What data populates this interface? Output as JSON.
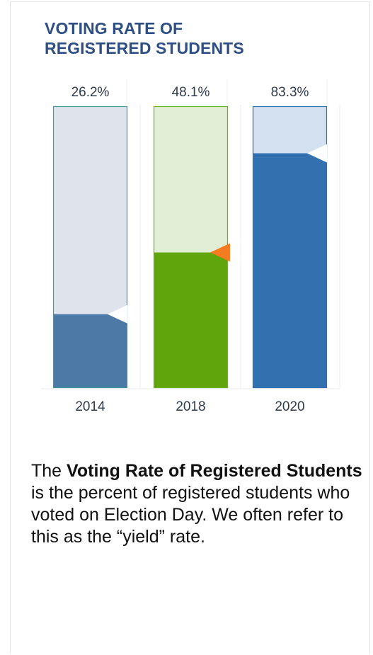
{
  "title_lines": [
    "VOTING RATE OF",
    "REGISTERED STUDENTS"
  ],
  "chart_data": {
    "type": "bar",
    "categories": [
      "2014",
      "2018",
      "2020"
    ],
    "values": [
      26.2,
      48.1,
      83.3
    ],
    "value_labels": [
      "26.2%",
      "48.1%",
      "83.3%"
    ],
    "ylim": [
      0,
      100
    ],
    "colors": {
      "2014": {
        "fill": "#4d79a6",
        "background": "#dfe4ec",
        "border": "#3f9a9a"
      },
      "2018": {
        "fill": "#61a50d",
        "background": "#e1edd4",
        "border": "#6bb025"
      },
      "2020": {
        "fill": "#3270b0",
        "background": "#d3e0ef",
        "border": "#3270b0"
      }
    },
    "markers": [
      {
        "category": "2014",
        "value": 26.2,
        "color": "#ffffff"
      },
      {
        "category": "2018",
        "value": 48.1,
        "color": "#f47b20"
      },
      {
        "category": "2020",
        "value": 83.3,
        "color": "#ffffff"
      }
    ]
  },
  "description": {
    "prefix": "The ",
    "bold": "Voting Rate of Registered Students",
    "suffix": " is the percent of registered students who voted on Election Day. We often refer to this as the “yield” rate."
  }
}
